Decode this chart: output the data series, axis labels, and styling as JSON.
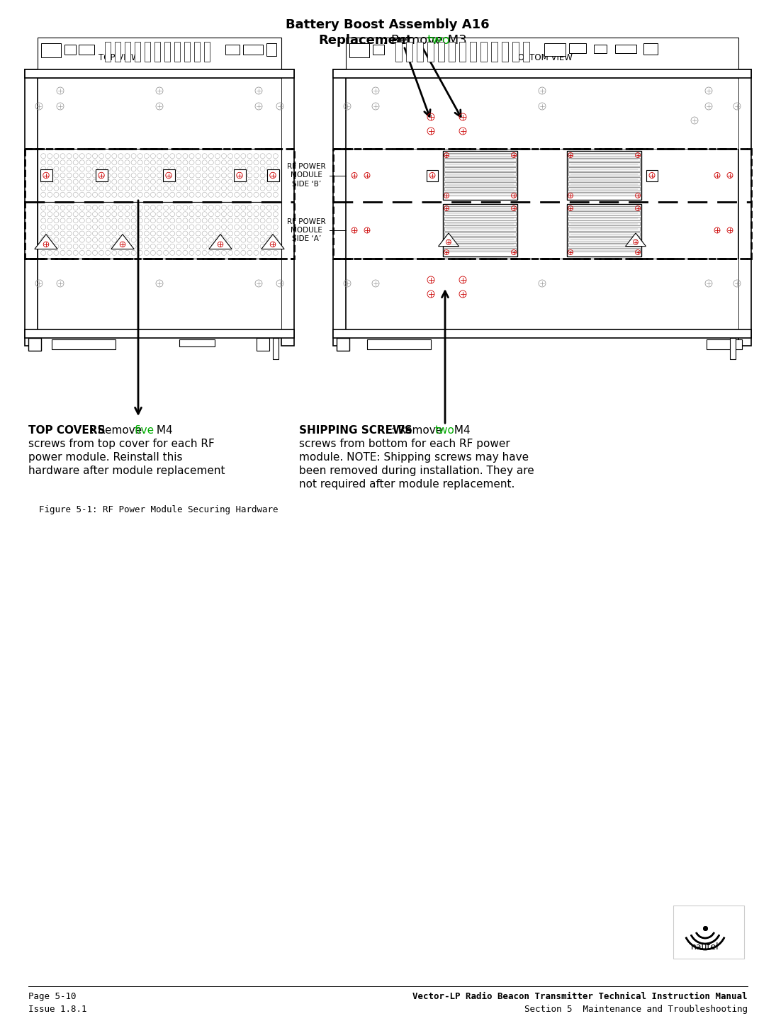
{
  "title_line1": "Battery Boost Assembly A16",
  "title_line2_bold": "Replacement",
  "title_line2_rest": ": Remove ",
  "title_line2_colored": "two",
  "title_line2_end": " M3",
  "top_view_label": "TOP VIEW",
  "bottom_view_label": "BOTTOM VIEW",
  "rf_power_side_b": "RF POWER\nMODULE\nSIDE ‘B’",
  "rf_power_side_a": "RF POWER\nMODULE\nSIDE ‘A’",
  "caption": "Figure 5-1: RF Power Module Securing Hardware",
  "top_covers_bold": "TOP COVERS",
  "top_covers_rest1": ": Remove ",
  "top_covers_colored": "five",
  "top_covers_rest2": " M4",
  "top_covers_line2": "screws from top cover for each RF",
  "top_covers_line3": "power module. Reinstall this",
  "top_covers_line4": "hardware after module replacement",
  "shipping_bold": "SHIPPING SCREWS",
  "shipping_rest1": ": Remove ",
  "shipping_colored": "two",
  "shipping_rest2": " M4",
  "shipping_line2": "screws from bottom for each RF power",
  "shipping_line3": "module. NOTE: Shipping screws may have",
  "shipping_line4": "been removed during installation. They are",
  "shipping_line5": "not required after module replacement.",
  "footer_left_line1": "Page 5-10",
  "footer_left_line2": "Issue 1.8.1",
  "footer_right_line1": "Vector-LP Radio Beacon Transmitter Technical Instruction Manual",
  "footer_right_line2": "Section 5  Maintenance and Troubleshooting",
  "green_color": "#00aa00",
  "red_color": "#cc0000",
  "black_color": "#000000",
  "bg_color": "#ffffff"
}
